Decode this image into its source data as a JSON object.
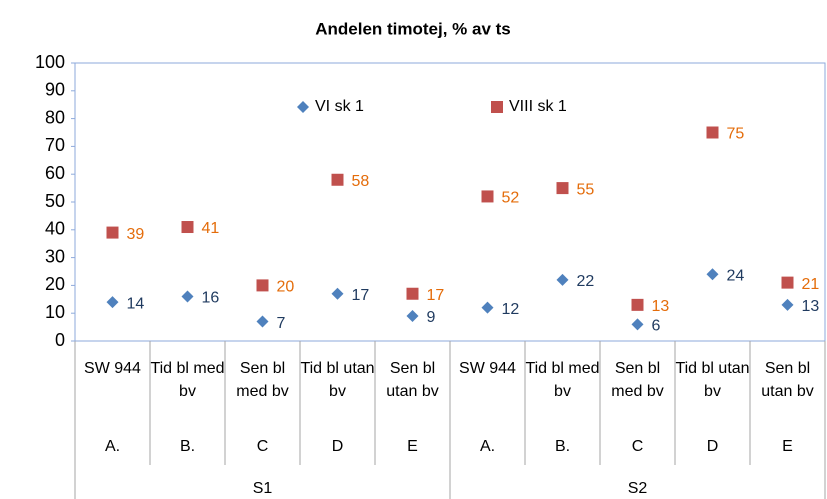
{
  "chart_data": {
    "type": "scatter",
    "title": "Andelen timotej, % av ts",
    "categories": [
      "SW 944",
      "Tid bl med bv",
      "Sen bl med bv",
      "Tid bl utan bv",
      "Sen bl utan bv",
      "SW 944",
      "Tid bl med bv",
      "Sen bl med bv",
      "Tid bl utan bv",
      "Sen bl utan bv"
    ],
    "category_letters": [
      "A.",
      "B.",
      "C",
      "D",
      "E",
      "A.",
      "B.",
      "C",
      "D",
      "E"
    ],
    "groups": [
      "S1",
      "S2"
    ],
    "series": [
      {
        "name": "VI sk 1",
        "color": "#4f81bd",
        "label_color": "#1f3a5f",
        "marker": "diamond",
        "values": [
          14,
          16,
          7,
          17,
          9,
          12,
          22,
          6,
          24,
          13
        ]
      },
      {
        "name": "VIII sk 1",
        "color": "#c0504d",
        "label_color": "#e46c0a",
        "marker": "square",
        "values": [
          39,
          41,
          20,
          58,
          17,
          52,
          55,
          13,
          75,
          21
        ]
      }
    ],
    "ylim": [
      0,
      100
    ],
    "yticks": [
      0,
      10,
      20,
      30,
      40,
      50,
      60,
      70,
      80,
      90,
      100
    ],
    "grid": false,
    "legend": "top"
  }
}
